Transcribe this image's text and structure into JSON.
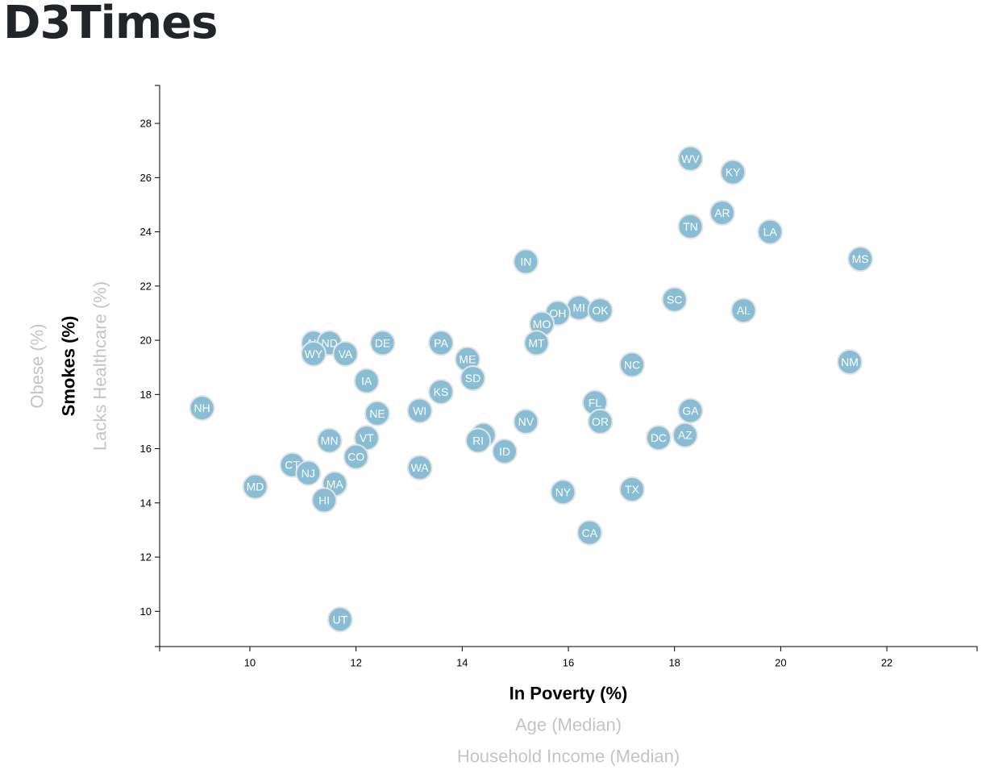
{
  "page": {
    "title": "D3Times"
  },
  "colors": {
    "circle_fill": "#89bdd3",
    "circle_stroke": "#e3e3e3",
    "active_label": "#000000",
    "inactive_label": "#c4c4c4"
  },
  "chart_data": {
    "type": "scatter",
    "title": "",
    "x_axis": {
      "labels": [
        {
          "text": "In Poverty (%)",
          "active": true
        },
        {
          "text": "Age (Median)",
          "active": false
        },
        {
          "text": "Household Income (Median)",
          "active": false
        }
      ],
      "ticks": [
        10,
        12,
        14,
        16,
        18,
        20,
        22
      ],
      "range": [
        8.3,
        23.7
      ]
    },
    "y_axis": {
      "labels": [
        {
          "text": "Smokes (%)",
          "active": true
        },
        {
          "text": "Lacks Healthcare (%)",
          "active": false
        },
        {
          "text": "Obese (%)",
          "active": false
        }
      ],
      "ticks": [
        10,
        12,
        14,
        16,
        18,
        20,
        22,
        24,
        26,
        28
      ],
      "range": [
        8.7,
        29.4
      ]
    },
    "grid": false,
    "points": [
      {
        "abbr": "WV",
        "x": 18.3,
        "y": 26.7
      },
      {
        "abbr": "KY",
        "x": 19.1,
        "y": 26.2
      },
      {
        "abbr": "AR",
        "x": 18.9,
        "y": 24.7
      },
      {
        "abbr": "TN",
        "x": 18.3,
        "y": 24.2
      },
      {
        "abbr": "LA",
        "x": 19.8,
        "y": 24.0
      },
      {
        "abbr": "MS",
        "x": 21.5,
        "y": 23.0
      },
      {
        "abbr": "IN",
        "x": 15.2,
        "y": 22.9
      },
      {
        "abbr": "SC",
        "x": 18.0,
        "y": 21.5
      },
      {
        "abbr": "AL",
        "x": 19.3,
        "y": 21.1
      },
      {
        "abbr": "MI",
        "x": 16.2,
        "y": 21.2
      },
      {
        "abbr": "OK",
        "x": 16.6,
        "y": 21.1
      },
      {
        "abbr": "OH",
        "x": 15.8,
        "y": 21.0
      },
      {
        "abbr": "MO",
        "x": 15.5,
        "y": 20.6
      },
      {
        "abbr": "MT",
        "x": 15.4,
        "y": 19.9
      },
      {
        "abbr": "NM",
        "x": 21.3,
        "y": 19.2
      },
      {
        "abbr": "NC",
        "x": 17.2,
        "y": 19.1
      },
      {
        "abbr": "AK",
        "x": 11.2,
        "y": 19.9
      },
      {
        "abbr": "ND",
        "x": 11.5,
        "y": 19.9
      },
      {
        "abbr": "WY",
        "x": 11.2,
        "y": 19.5
      },
      {
        "abbr": "VA",
        "x": 11.8,
        "y": 19.5
      },
      {
        "abbr": "DE",
        "x": 12.5,
        "y": 19.9
      },
      {
        "abbr": "PA",
        "x": 13.6,
        "y": 19.9
      },
      {
        "abbr": "ME",
        "x": 14.1,
        "y": 19.3
      },
      {
        "abbr": "SD",
        "x": 14.2,
        "y": 18.6
      },
      {
        "abbr": "IA",
        "x": 12.2,
        "y": 18.5
      },
      {
        "abbr": "KS",
        "x": 13.6,
        "y": 18.1
      },
      {
        "abbr": "NH",
        "x": 9.1,
        "y": 17.5
      },
      {
        "abbr": "WI",
        "x": 13.2,
        "y": 17.4
      },
      {
        "abbr": "NE",
        "x": 12.4,
        "y": 17.3
      },
      {
        "abbr": "FL",
        "x": 16.5,
        "y": 17.7
      },
      {
        "abbr": "GA",
        "x": 18.3,
        "y": 17.4
      },
      {
        "abbr": "NV",
        "x": 15.2,
        "y": 17.0
      },
      {
        "abbr": "OR",
        "x": 16.6,
        "y": 17.0
      },
      {
        "abbr": "IL",
        "x": 14.4,
        "y": 16.5
      },
      {
        "abbr": "RI",
        "x": 14.3,
        "y": 16.3
      },
      {
        "abbr": "VT",
        "x": 12.2,
        "y": 16.4
      },
      {
        "abbr": "MN",
        "x": 11.5,
        "y": 16.3
      },
      {
        "abbr": "DC",
        "x": 17.7,
        "y": 16.4
      },
      {
        "abbr": "AZ",
        "x": 18.2,
        "y": 16.5
      },
      {
        "abbr": "ID",
        "x": 14.8,
        "y": 15.9
      },
      {
        "abbr": "CO",
        "x": 12.0,
        "y": 15.7
      },
      {
        "abbr": "CT",
        "x": 10.8,
        "y": 15.4
      },
      {
        "abbr": "NJ",
        "x": 11.1,
        "y": 15.1
      },
      {
        "abbr": "WA",
        "x": 13.2,
        "y": 15.3
      },
      {
        "abbr": "MA",
        "x": 11.6,
        "y": 14.7
      },
      {
        "abbr": "MD",
        "x": 10.1,
        "y": 14.6
      },
      {
        "abbr": "TX",
        "x": 17.2,
        "y": 14.5
      },
      {
        "abbr": "NY",
        "x": 15.9,
        "y": 14.4
      },
      {
        "abbr": "HI",
        "x": 11.4,
        "y": 14.1
      },
      {
        "abbr": "CA",
        "x": 16.4,
        "y": 12.9
      },
      {
        "abbr": "UT",
        "x": 11.7,
        "y": 9.7
      }
    ]
  }
}
